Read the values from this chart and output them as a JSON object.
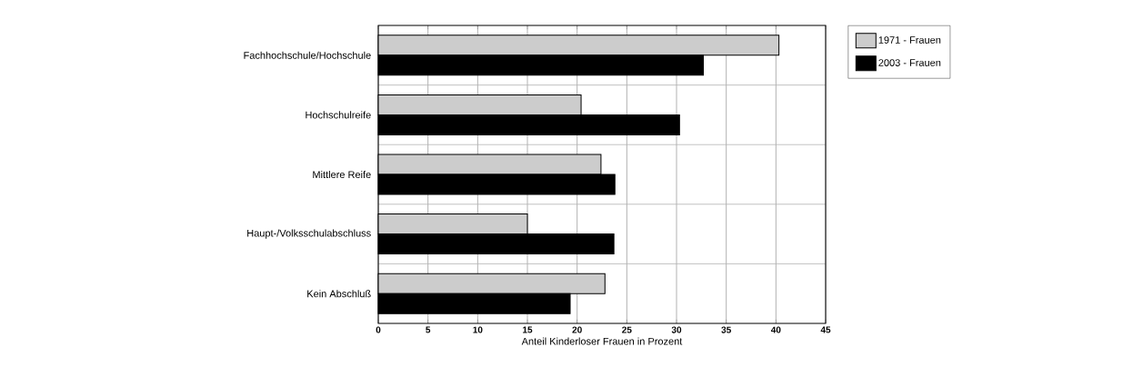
{
  "chart_data": {
    "type": "bar",
    "orientation": "horizontal",
    "xlabel": "Anteil Kinderloser Frauen in Prozent",
    "categories": [
      "Fachhochschule/Hochschule",
      "Hochschulreife",
      "Mittlere Reife",
      "Haupt-/Volksschulabschluss",
      "Kein Abschluß"
    ],
    "series": [
      {
        "name": "1971 - Frauen",
        "color": "#cccccc",
        "values": [
          40.3,
          20.4,
          22.4,
          15.0,
          22.8
        ]
      },
      {
        "name": "2003 - Frauen",
        "color": "#000000",
        "values": [
          32.7,
          30.3,
          23.8,
          23.7,
          19.3
        ]
      }
    ],
    "xlim": [
      0,
      45
    ],
    "xticks": [
      0,
      5,
      10,
      15,
      20,
      25,
      30,
      35,
      40,
      45
    ],
    "grid": true,
    "legend": "top right"
  }
}
